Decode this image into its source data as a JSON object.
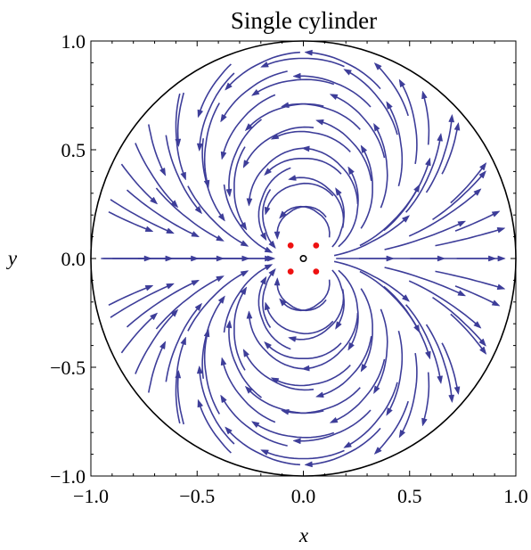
{
  "chart_data": {
    "type": "stream",
    "title": "Single cylinder",
    "xlabel": "x",
    "ylabel": "y",
    "xlim": [
      -1.0,
      1.0
    ],
    "ylim": [
      -1.0,
      1.0
    ],
    "xticks": [
      "−1.0",
      "−0.5",
      "0.0",
      "0.5",
      "1.0"
    ],
    "yticks": [
      "−1.0",
      "−0.5",
      "0.0",
      "0.5",
      "1.0"
    ],
    "xtick_values": [
      -1.0,
      -0.5,
      0.0,
      0.5,
      1.0
    ],
    "ytick_values": [
      -1.0,
      -0.5,
      0.0,
      0.5,
      1.0
    ],
    "boundary": {
      "shape": "circle",
      "center": [
        0,
        0
      ],
      "radius": 1.0
    },
    "center_point": {
      "x": 0.0,
      "y": 0.0
    },
    "red_points": [
      {
        "x": -0.06,
        "y": 0.06
      },
      {
        "x": 0.06,
        "y": 0.06
      },
      {
        "x": -0.06,
        "y": -0.06
      },
      {
        "x": 0.06,
        "y": -0.06
      }
    ],
    "stream_color": "#3d3d99",
    "point_color": "#ee1111",
    "grid": false
  }
}
